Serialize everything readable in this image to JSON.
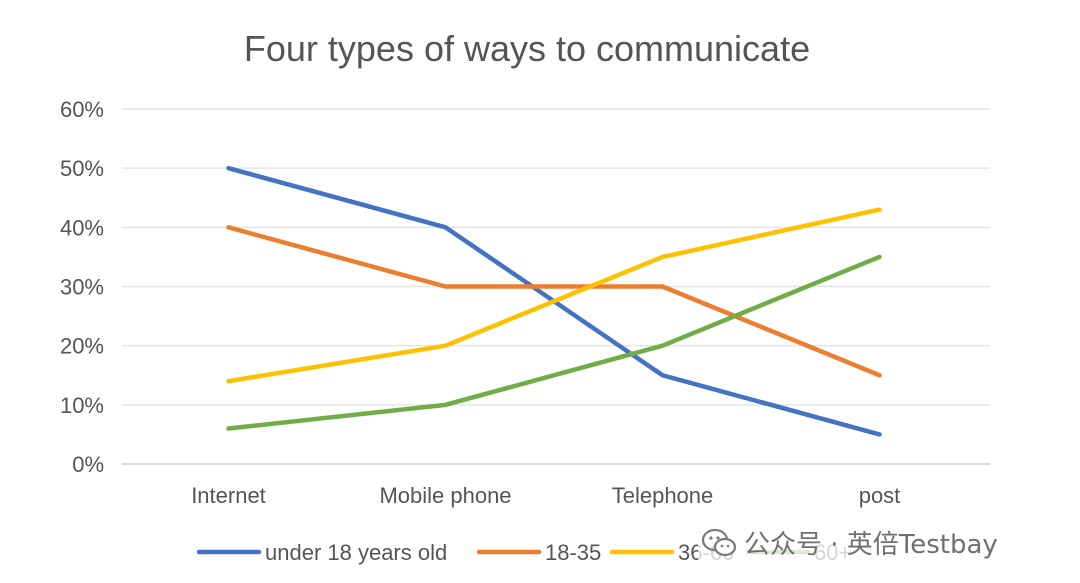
{
  "chart_data": {
    "type": "line",
    "title": "Four types of ways to communicate",
    "categories": [
      "Internet",
      "Mobile phone",
      "Telephone",
      "post"
    ],
    "y_ticks": [
      "0%",
      "10%",
      "20%",
      "30%",
      "40%",
      "50%",
      "60%"
    ],
    "ylim": [
      0,
      60
    ],
    "y_unit": "%",
    "grid": true,
    "legend_position": "bottom",
    "series": [
      {
        "name": "under 18 years old",
        "color": "#4472C4",
        "values": [
          50,
          40,
          15,
          5
        ]
      },
      {
        "name": "18-35",
        "color": "#ED7D31",
        "values": [
          40,
          30,
          30,
          15
        ]
      },
      {
        "name": "36-60",
        "color": "#FFC000",
        "values": [
          14,
          20,
          35,
          43
        ]
      },
      {
        "name": "60+",
        "color": "#70AD47",
        "values": [
          6,
          10,
          20,
          35
        ]
      }
    ]
  },
  "watermark": {
    "icon": "wechat-icon",
    "text": "公众号 · 英倍Testbay"
  }
}
